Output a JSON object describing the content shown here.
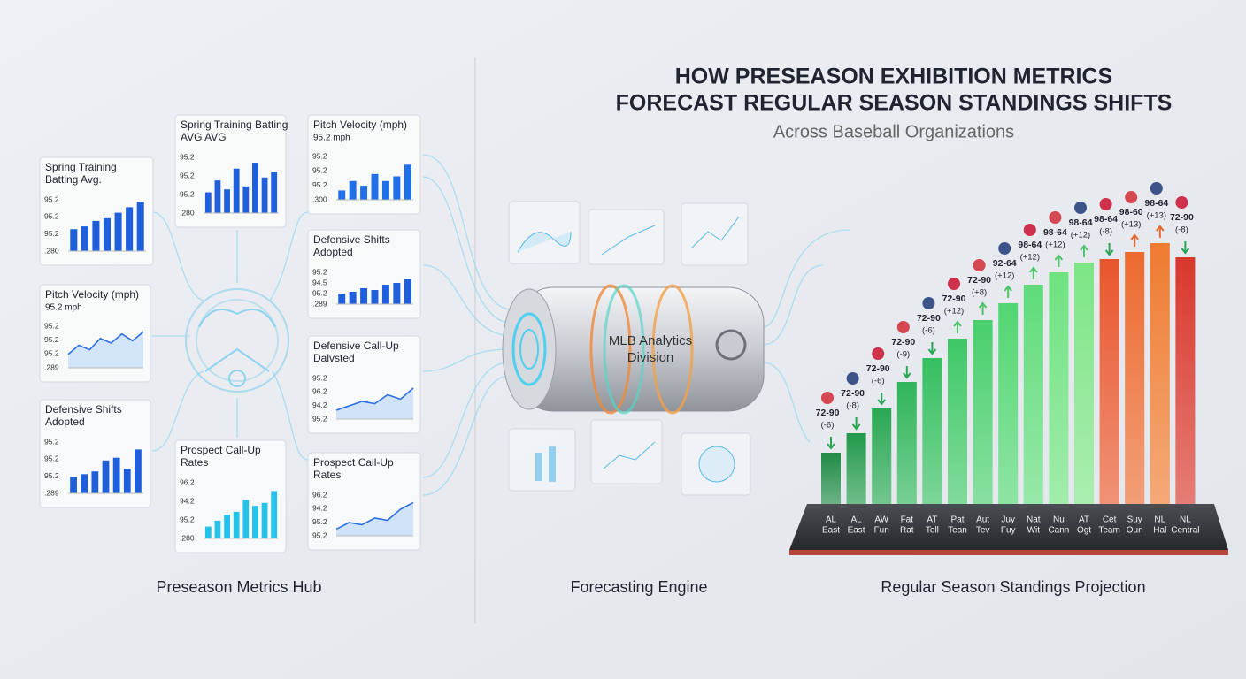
{
  "header": {
    "title": [
      "HOW PRESEASON EXHIBITION METRICS",
      "FORECAST REGULAR SEASON STANDINGS SHIFTS"
    ],
    "subtitle": "Across Baseball Organizations"
  },
  "hub": {
    "label": "Preseason Metrics Hub",
    "cards": [
      {
        "title": [
          "Spring Training",
          "Batting Avg."
        ],
        "type": "bar",
        "ticks": [
          "95.2",
          "95.2",
          "95.2",
          ".280"
        ],
        "ylim": [
          0,
          100
        ],
        "values": [
          40,
          45,
          55,
          60,
          70,
          80,
          90
        ],
        "color": "#1f5fdc"
      },
      {
        "title": [
          "Pitch Velocity (mph)"
        ],
        "subtitle": "95.2 mph",
        "type": "line",
        "ticks": [
          "95.2",
          "95.2",
          "95.2",
          ".289"
        ],
        "ylim": [
          0,
          100
        ],
        "values": [
          30,
          50,
          40,
          65,
          55,
          75,
          60,
          80
        ],
        "color": "#2b6fe0"
      },
      {
        "title": [
          "Defensive Shifts",
          "Adopted"
        ],
        "type": "bar",
        "ticks": [
          "95.2",
          "95.2",
          "95.2",
          ".289"
        ],
        "ylim": [
          0,
          100
        ],
        "values": [
          30,
          35,
          40,
          60,
          65,
          45,
          80
        ],
        "color": "#1f5fdc"
      },
      {
        "title": [
          "Spring Training Batting",
          "AVG AVG"
        ],
        "type": "bar",
        "ticks": [
          "95.2",
          "95.2",
          "95.2",
          ".280"
        ],
        "ylim": [
          0,
          100
        ],
        "values": [
          35,
          55,
          40,
          75,
          45,
          85,
          60,
          70
        ],
        "color": "#1f5fdc"
      },
      {
        "title": [
          "Prospect Call-Up",
          "Rates"
        ],
        "type": "bar",
        "ticks": [
          "96.2",
          "94.2",
          "95.2",
          ".280"
        ],
        "ylim": [
          0,
          100
        ],
        "values": [
          20,
          30,
          40,
          45,
          65,
          55,
          60,
          80
        ],
        "color": "#25c3ea"
      },
      {
        "title": [
          "Pitch Velocity (mph)"
        ],
        "subtitle": "95.2 mph",
        "type": "bar",
        "ticks": [
          "95.2",
          "95.2",
          "95.2",
          ".300"
        ],
        "ylim": [
          0,
          100
        ],
        "values": [
          20,
          40,
          30,
          55,
          40,
          50,
          75
        ],
        "color": "#1f6fe6"
      },
      {
        "title": [
          "Defensive Shifts",
          "Adopted"
        ],
        "type": "bar",
        "ticks": [
          "95.2",
          "94.5",
          "95.2",
          ".289"
        ],
        "ylim": [
          0,
          100
        ],
        "values": [
          30,
          35,
          45,
          40,
          55,
          60,
          70
        ],
        "color": "#1f5fdc"
      },
      {
        "title": [
          "Defensive Call-Up",
          "Dalvsted"
        ],
        "type": "line",
        "ticks": [
          "95.2",
          "96.2",
          "94.2",
          "95.2"
        ],
        "ylim": [
          0,
          100
        ],
        "values": [
          20,
          30,
          40,
          35,
          55,
          45,
          70
        ],
        "color": "#2b6fe0"
      },
      {
        "title": [
          "Prospect Call-Up",
          "Rates"
        ],
        "type": "line",
        "ticks": [
          "96.2",
          "94.2",
          "95.2",
          "95.2"
        ],
        "ylim": [
          0,
          100
        ],
        "values": [
          15,
          30,
          25,
          40,
          35,
          60,
          75
        ],
        "color": "#2b6fe0"
      }
    ]
  },
  "engine": {
    "label": "Forecasting Engine",
    "device": [
      "MLB Analytics",
      "Division"
    ]
  },
  "projection": {
    "label": "Regular Season Standings Projection",
    "ylim": [
      0,
      300
    ],
    "categories": [
      [
        "AL",
        "East"
      ],
      [
        "AL",
        "East"
      ],
      [
        "AW",
        "Fun"
      ],
      [
        "Fat",
        "Rat"
      ],
      [
        "AT",
        "Tell"
      ],
      [
        "Pat",
        "Tean"
      ],
      [
        "Aut",
        "Tev"
      ],
      [
        "Juy",
        "Fuy"
      ],
      [
        "Nat",
        "Wit"
      ],
      [
        "Nu",
        "Cann"
      ],
      [
        "AT",
        "Ogt"
      ],
      [
        "Cet",
        "Team"
      ],
      [
        "Suy",
        "Oun"
      ],
      [
        "NL",
        "Hal"
      ],
      [
        "NL",
        "Central"
      ]
    ],
    "values": [
      58,
      80,
      108,
      138,
      165,
      187,
      208,
      227,
      248,
      262,
      273,
      277,
      285,
      295,
      279
    ],
    "records": [
      "72-90",
      "72-90",
      "72-90",
      "72-90",
      "72-90",
      "72-90",
      "72-90",
      "92-64",
      "98-64",
      "98-64",
      "98-64",
      "98-64",
      "98-60",
      "98-64",
      "72-90"
    ],
    "deltas": [
      "(-6)",
      "(-8)",
      "(-6)",
      "(-9)",
      "(-6)",
      "(+12)",
      "(+8)",
      "(+12)",
      "(+12)",
      "(+12)",
      "(+12)",
      "(-8)",
      "(+13)",
      "(+13)",
      "(-8)"
    ],
    "colors": [
      "#1f8a45",
      "#239a4c",
      "#28a853",
      "#2fb55a",
      "#36bf60",
      "#3ec866",
      "#48cf6c",
      "#52d672",
      "#5fdc7a",
      "#6ee27f",
      "#7de585",
      "#e8562d",
      "#ec6a2f",
      "#ef7b30",
      "#d8372c"
    ]
  }
}
